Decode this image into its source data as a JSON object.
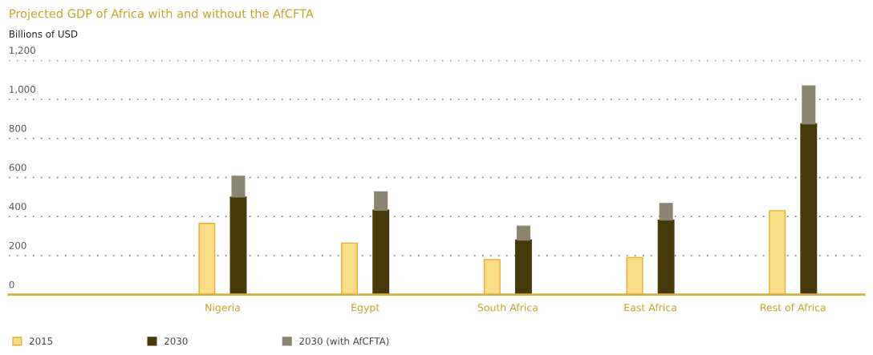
{
  "chart_data": {
    "type": "bar",
    "title": "Projected GDP of Africa with and without the AfCFTA",
    "ylabel": "Billions of USD",
    "categories": [
      "Nigeria",
      "Egypt",
      "South Africa",
      "East Africa",
      "Rest of Africa"
    ],
    "series": [
      {
        "name": "2015",
        "color": "#f9dc85",
        "values": [
          365,
          264,
          180,
          190,
          430
        ]
      },
      {
        "name": "2030",
        "color": "#463a0a",
        "values": [
          500,
          433,
          280,
          382,
          875
        ]
      },
      {
        "name": "2030 (with AfCFTA)",
        "color": "#8a8470",
        "values": [
          106,
          93,
          71,
          85,
          194
        ],
        "base": [
          500,
          433,
          280,
          382,
          875
        ]
      }
    ],
    "ylim": [
      0,
      1200
    ],
    "yticks": [
      0,
      200,
      400,
      600,
      800,
      {
        "value": 1000,
        "label": "1,000"
      },
      {
        "value": 1200,
        "label": "1,200"
      }
    ],
    "grid": "y",
    "legend": "bottom left"
  }
}
